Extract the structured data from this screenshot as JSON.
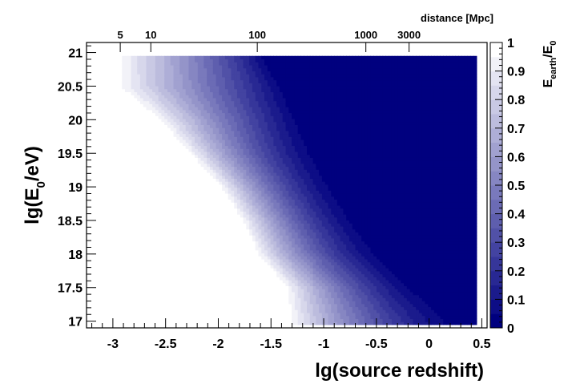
{
  "chart_data": {
    "type": "heatmap",
    "title": "",
    "xlabel": "lg(source redshift)",
    "ylabel": "lg(E0/eV)",
    "ylabel_parts": {
      "pre": "lg(E",
      "sub": "0",
      "post": "/eV)"
    },
    "top_axis_label": "distance [Mpc]",
    "colorbar_label": "Eearth/E0",
    "colorbar_label_parts": {
      "main": "E",
      "sub1": "earth",
      "mid": "/E",
      "sub2": "0"
    },
    "xlim": [
      -3.25,
      0.55
    ],
    "ylim": [
      16.9,
      21.15
    ],
    "zlim": [
      0,
      1
    ],
    "x_ticks": [
      "-3",
      "-2.5",
      "-2",
      "-1.5",
      "-1",
      "-0.5",
      "0",
      "0.5"
    ],
    "x_tick_values": [
      -3,
      -2.5,
      -2,
      -1.5,
      -1,
      -0.5,
      0,
      0.5
    ],
    "y_ticks": [
      "17",
      "17.5",
      "18",
      "18.5",
      "19",
      "19.5",
      "20",
      "20.5",
      "21"
    ],
    "y_tick_values": [
      17,
      17.5,
      18,
      18.5,
      19,
      19.5,
      20,
      20.5,
      21
    ],
    "top_ticks": [
      "5",
      "10",
      "100",
      "1000",
      "3000"
    ],
    "top_tick_redshift": [
      -2.93,
      -2.64,
      -1.63,
      -0.6,
      -0.19
    ],
    "colorbar_ticks": [
      "0",
      "0.1",
      "0.2",
      "0.3",
      "0.4",
      "0.5",
      "0.6",
      "0.7",
      "0.8",
      "0.9",
      "1"
    ],
    "colorbar_tick_values": [
      0,
      0.1,
      0.2,
      0.3,
      0.4,
      0.5,
      0.6,
      0.7,
      0.8,
      0.9,
      1
    ],
    "data_extent": {
      "x": [
        -3.0,
        0.45
      ],
      "y": [
        16.95,
        20.95
      ]
    },
    "contour_levels": 20,
    "z_axis": "lg(E0/eV)",
    "z_values": [
      16.95,
      17.0,
      17.5,
      18.0,
      18.5,
      19.0,
      19.5,
      20.0,
      20.5,
      20.95
    ],
    "contour_transition": {
      "ratio_1_edge_x": [
        -1.35,
        -1.35,
        -1.38,
        -1.65,
        -1.8,
        -2.0,
        -2.3,
        -2.6,
        -3.0,
        -3.0
      ],
      "ratio_0_edge_x": [
        0.45,
        0.45,
        0.05,
        -0.3,
        -0.55,
        -0.75,
        -0.95,
        -1.15,
        -1.35,
        -1.55
      ],
      "falloff_shape": [
        1.7,
        1.7,
        1.7,
        1.7,
        1.7,
        1.7,
        1.55,
        1.25,
        1.0,
        0.9
      ]
    },
    "colors": {
      "zero": "#00007f",
      "one": "#ffffff"
    }
  }
}
